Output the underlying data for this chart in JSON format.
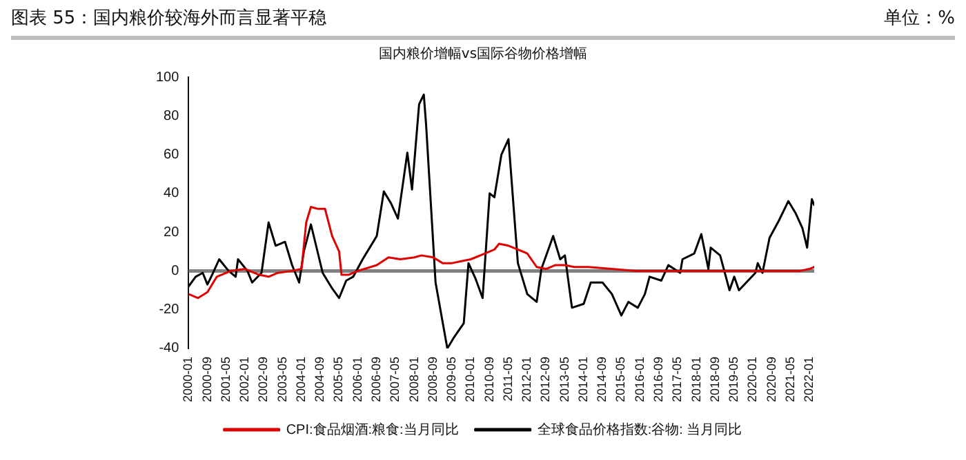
{
  "chart_data": {
    "type": "line",
    "title": "图表 55：国内粮价较海外而言显著平稳",
    "subtitle": "国内粮价增幅vs国际谷物价格增幅",
    "annotations": [
      "单位：%"
    ],
    "xlim": [
      "2000-01",
      "2022-03"
    ],
    "xticks": [
      "2000-01",
      "2000-09",
      "2001-05",
      "2002-01",
      "2002-09",
      "2003-05",
      "2004-01",
      "2004-09",
      "2005-05",
      "2006-01",
      "2006-09",
      "2007-05",
      "2008-01",
      "2008-09",
      "2009-05",
      "2010-01",
      "2010-09",
      "2011-05",
      "2012-01",
      "2012-09",
      "2013-05",
      "2014-01",
      "2014-09",
      "2015-05",
      "2016-01",
      "2016-09",
      "2017-05",
      "2018-01",
      "2018-09",
      "2019-05",
      "2020-01",
      "2020-09",
      "2021-05",
      "2022-01"
    ],
    "ylim": [
      -40,
      100
    ],
    "yticks": [
      -40,
      -20,
      0,
      20,
      40,
      60,
      80,
      100
    ],
    "grid": false,
    "ref_lines": [
      {
        "axis": "y",
        "value": 0,
        "color": "#808080"
      }
    ],
    "legend": "bottom",
    "marker": "none",
    "line_style": "solid",
    "series": [
      {
        "name": "CPI:食品烟酒:粮食:当月同比",
        "color": "#e00000",
        "x": [
          "2000-01",
          "2000-05",
          "2000-09",
          "2001-01",
          "2001-07",
          "2002-01",
          "2002-07",
          "2002-11",
          "2003-03",
          "2003-09",
          "2004-01",
          "2004-03",
          "2004-05",
          "2004-08",
          "2004-11",
          "2005-02",
          "2005-05",
          "2005-06",
          "2005-09",
          "2006-01",
          "2006-09",
          "2007-02",
          "2007-07",
          "2008-01",
          "2008-04",
          "2008-09",
          "2009-01",
          "2009-05",
          "2009-09",
          "2010-01",
          "2010-07",
          "2010-11",
          "2011-01",
          "2011-05",
          "2011-09",
          "2012-01",
          "2012-05",
          "2012-09",
          "2013-01",
          "2013-05",
          "2013-09",
          "2014-03",
          "2015-01",
          "2015-11",
          "2016-09",
          "2017-05",
          "2018-05",
          "2020-01",
          "2021-09",
          "2022-01",
          "2022-03"
        ],
        "values": [
          -12,
          -14,
          -11,
          -3,
          0,
          1,
          -2,
          -3,
          -1,
          0,
          1,
          25,
          33,
          32,
          32,
          18,
          10,
          -2,
          -2,
          0,
          3,
          7,
          6,
          7,
          8,
          7,
          4,
          4,
          5,
          6,
          9,
          11,
          14,
          13,
          11,
          9,
          2,
          1,
          3,
          3,
          2,
          2,
          1,
          0,
          0,
          0,
          0,
          0,
          0,
          1,
          2
        ]
      },
      {
        "name": "全球食品价格指数:谷物: 当月同比",
        "color": "#000000",
        "x": [
          "2000-01",
          "2000-04",
          "2000-07",
          "2000-09",
          "2000-11",
          "2001-02",
          "2001-06",
          "2001-09",
          "2001-10",
          "2002-02",
          "2002-04",
          "2002-08",
          "2002-11",
          "2003-02",
          "2003-06",
          "2003-09",
          "2003-12",
          "2004-02",
          "2004-05",
          "2004-07",
          "2004-10",
          "2005-02",
          "2005-05",
          "2005-08",
          "2005-11",
          "2006-03",
          "2006-06",
          "2006-09",
          "2006-12",
          "2007-03",
          "2007-06",
          "2007-10",
          "2007-12",
          "2008-03",
          "2008-05",
          "2008-06",
          "2008-10",
          "2009-03",
          "2009-06",
          "2009-10",
          "2009-12",
          "2010-03",
          "2010-06",
          "2010-09",
          "2010-11",
          "2011-02",
          "2011-05",
          "2011-09",
          "2012-01",
          "2012-05",
          "2012-07",
          "2012-12",
          "2013-03",
          "2013-05",
          "2013-08",
          "2014-01",
          "2014-04",
          "2014-09",
          "2015-01",
          "2015-05",
          "2015-08",
          "2015-12",
          "2016-03",
          "2016-05",
          "2016-10",
          "2017-01",
          "2017-06",
          "2017-07",
          "2017-12",
          "2018-03",
          "2018-06",
          "2018-07",
          "2018-11",
          "2019-03",
          "2019-05",
          "2019-07",
          "2020-02",
          "2020-03",
          "2020-05",
          "2020-08",
          "2020-12",
          "2021-04",
          "2021-07",
          "2021-10",
          "2021-12",
          "2022-02",
          "2022-03"
        ],
        "values": [
          -8,
          -3,
          -1,
          -7,
          -2,
          6,
          0,
          -3,
          6,
          0,
          -6,
          -1,
          25,
          13,
          15,
          3,
          -6,
          10,
          24,
          14,
          -1,
          -9,
          -14,
          -5,
          -3,
          6,
          12,
          18,
          41,
          35,
          27,
          61,
          42,
          86,
          91,
          75,
          -6,
          -40,
          -34,
          -27,
          4,
          -4,
          -14,
          40,
          38,
          60,
          68,
          4,
          -12,
          -16,
          1,
          18,
          6,
          8,
          -19,
          -17,
          -6,
          -6,
          -12,
          -23,
          -16,
          -19,
          -12,
          -3,
          -5,
          3,
          -1,
          6,
          9,
          19,
          1,
          12,
          8,
          -10,
          -3,
          -10,
          -1,
          4,
          -1,
          17,
          26,
          36,
          30,
          22,
          12,
          37,
          34
        ]
      }
    ]
  }
}
